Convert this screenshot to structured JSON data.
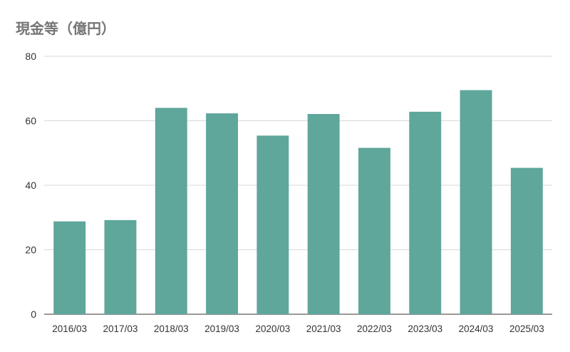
{
  "chart_data": {
    "type": "bar",
    "title": "現金等（億円）",
    "xlabel": "",
    "ylabel": "",
    "categories": [
      "2016/03",
      "2017/03",
      "2018/03",
      "2019/03",
      "2020/03",
      "2021/03",
      "2022/03",
      "2023/03",
      "2024/03",
      "2025/03"
    ],
    "series": [
      {
        "values": [
          28.8,
          29.2,
          64.0,
          62.3,
          55.4,
          62.1,
          51.6,
          62.8,
          69.5,
          45.4
        ],
        "color": "#5fa69b"
      }
    ],
    "ylim": [
      0,
      80
    ],
    "yticks": [
      0,
      20,
      40,
      60,
      80
    ],
    "grid": true,
    "legend": "none"
  }
}
